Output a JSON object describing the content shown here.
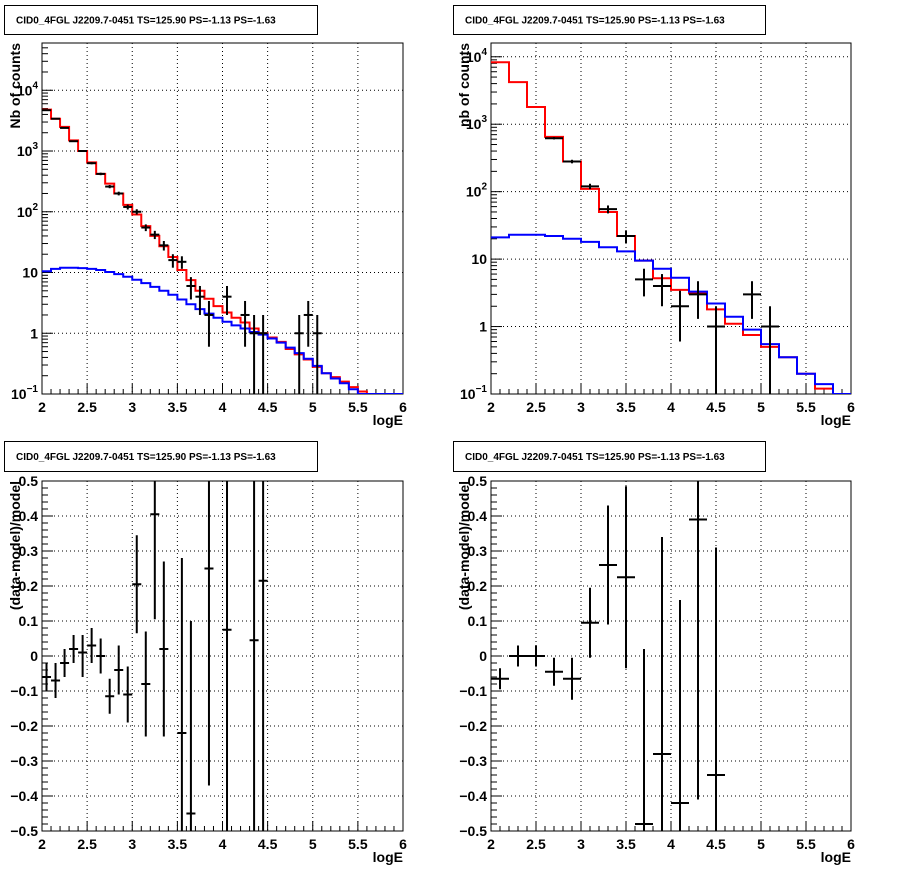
{
  "chart_data": [
    {
      "type": "line",
      "title": "CID0_4FGL J2209.7-0451 TS=125.90 PS=-1.13 PS=-1.63",
      "xlabel": "logE",
      "ylabel": "Nb of counts",
      "xlim": [
        2,
        6
      ],
      "ylim": [
        0.1,
        60000
      ],
      "yscale": "log",
      "grid": true,
      "xticks": [
        "2",
        "2.5",
        "3",
        "3.5",
        "4",
        "4.5",
        "5",
        "5.5",
        "6"
      ],
      "yticks": [
        {
          "v": 0.1,
          "base": "10",
          "exp": "−1"
        },
        {
          "v": 1,
          "label": "1"
        },
        {
          "v": 10,
          "label": "10"
        },
        {
          "v": 100,
          "base": "10",
          "exp": "2"
        },
        {
          "v": 1000,
          "base": "10",
          "exp": "3"
        },
        {
          "v": 10000,
          "base": "10",
          "exp": "4"
        }
      ],
      "binwidth": 0.1,
      "series": [
        {
          "color": "#ff0000",
          "kind": "step",
          "x": [
            2.0,
            2.1,
            2.2,
            2.3,
            2.4,
            2.5,
            2.6,
            2.7,
            2.8,
            2.9,
            3.0,
            3.1,
            3.2,
            3.3,
            3.4,
            3.5,
            3.6,
            3.7,
            3.8,
            3.9,
            4.0,
            4.1,
            4.2,
            4.3,
            4.4,
            4.5,
            4.6,
            4.7,
            4.8,
            4.9,
            5.0,
            5.1,
            5.2,
            5.3,
            5.4,
            5.5,
            5.6,
            5.7,
            5.8,
            5.9
          ],
          "y": [
            4800,
            3400,
            2500,
            1500,
            1000,
            650,
            420,
            290,
            200,
            130,
            90,
            58,
            40,
            27,
            18,
            11,
            7.5,
            5,
            3.7,
            2.8,
            2.2,
            1.8,
            1.5,
            1.2,
            1.0,
            0.85,
            0.72,
            0.55,
            0.45,
            0.37,
            0.28,
            0.22,
            0.19,
            0.16,
            0.13,
            0.11,
            0.1,
            0.1,
            0.1,
            0.1
          ]
        },
        {
          "color": "#0000ff",
          "kind": "step",
          "x": [
            2.0,
            2.1,
            2.2,
            2.3,
            2.4,
            2.5,
            2.6,
            2.7,
            2.8,
            2.9,
            3.0,
            3.1,
            3.2,
            3.3,
            3.4,
            3.5,
            3.6,
            3.7,
            3.8,
            3.9,
            4.0,
            4.1,
            4.2,
            4.3,
            4.4,
            4.5,
            4.6,
            4.7,
            4.8,
            4.9,
            5.0,
            5.1,
            5.2,
            5.3,
            5.4,
            5.5,
            5.6,
            5.7,
            5.8,
            5.9
          ],
          "y": [
            10.5,
            11.5,
            12,
            12,
            11.8,
            11.5,
            11,
            10.2,
            9.4,
            8.5,
            7.6,
            6.7,
            5.8,
            5,
            4.3,
            3.6,
            3,
            2.5,
            2.1,
            1.8,
            1.55,
            1.35,
            1.2,
            1.05,
            0.95,
            0.82,
            0.7,
            0.58,
            0.47,
            0.38,
            0.29,
            0.22,
            0.18,
            0.15,
            0.12,
            0.1,
            0.1,
            0.1,
            0.1,
            0.1
          ]
        },
        {
          "color": "#000000",
          "kind": "points",
          "xerr": 0.05,
          "x": [
            2.05,
            2.15,
            2.25,
            2.35,
            2.45,
            2.55,
            2.65,
            2.75,
            2.85,
            2.95,
            3.05,
            3.15,
            3.25,
            3.35,
            3.45,
            3.55,
            3.65,
            3.75,
            3.85,
            4.05,
            4.25,
            4.35,
            4.45,
            4.85,
            4.95,
            5.05
          ],
          "y": [
            4700,
            3400,
            2400,
            1450,
            1000,
            630,
            420,
            260,
            200,
            120,
            100,
            55,
            42,
            28,
            16,
            15,
            6,
            4,
            2,
            4,
            2,
            1,
            1,
            1,
            2,
            1
          ],
          "yerr_lo": [
            70,
            60,
            50,
            40,
            30,
            25,
            20,
            16,
            14,
            11,
            10,
            7,
            6.5,
            5,
            4,
            3.5,
            2.4,
            2,
            1.4,
            2,
            1.4,
            1,
            1,
            1,
            1.4,
            1
          ],
          "yerr_hi": [
            70,
            60,
            50,
            40,
            30,
            25,
            20,
            16,
            14,
            11,
            10,
            7,
            6.5,
            5,
            4,
            3.5,
            2.4,
            2,
            1.4,
            2,
            1.4,
            1,
            1,
            1,
            1.4,
            1
          ]
        }
      ]
    },
    {
      "type": "line",
      "title": "CID0_4FGL J2209.7-0451 TS=125.90 PS=-1.13 PS=-1.63",
      "xlabel": "logE",
      "ylabel": "nb of counts",
      "xlim": [
        2,
        6
      ],
      "ylim": [
        0.1,
        16000
      ],
      "yscale": "log",
      "grid": true,
      "xticks": [
        "2",
        "2.5",
        "3",
        "3.5",
        "4",
        "4.5",
        "5",
        "5.5",
        "6"
      ],
      "yticks": [
        {
          "v": 0.1,
          "base": "10",
          "exp": "−1"
        },
        {
          "v": 1,
          "label": "1"
        },
        {
          "v": 10,
          "label": "10"
        },
        {
          "v": 100,
          "base": "10",
          "exp": "2"
        },
        {
          "v": 1000,
          "base": "10",
          "exp": "3"
        },
        {
          "v": 10000,
          "base": "10",
          "exp": "4"
        }
      ],
      "binwidth": 0.2,
      "series": [
        {
          "color": "#ff0000",
          "kind": "step",
          "x": [
            2.0,
            2.2,
            2.4,
            2.6,
            2.8,
            3.0,
            3.2,
            3.4,
            3.6,
            3.8,
            4.0,
            4.2,
            4.4,
            4.6,
            4.8,
            5.0,
            5.2,
            5.4,
            5.6,
            5.8
          ],
          "y": [
            8300,
            4200,
            1800,
            650,
            280,
            110,
            50,
            22,
            9.5,
            5.2,
            3.5,
            3.1,
            1.8,
            1.1,
            0.75,
            0.5,
            0.35,
            0.2,
            0.12,
            0.1
          ]
        },
        {
          "color": "#0000ff",
          "kind": "step",
          "x": [
            2.0,
            2.2,
            2.4,
            2.6,
            2.8,
            3.0,
            3.2,
            3.4,
            3.6,
            3.8,
            4.0,
            4.2,
            4.4,
            4.6,
            4.8,
            5.0,
            5.2,
            5.4,
            5.6,
            5.8
          ],
          "y": [
            21,
            23,
            23,
            22,
            20,
            18,
            15,
            13,
            9.5,
            7.2,
            5.3,
            3.3,
            2.2,
            1.4,
            0.9,
            0.55,
            0.35,
            0.2,
            0.14,
            0.1
          ]
        },
        {
          "color": "#000000",
          "kind": "points",
          "xerr": 0.1,
          "x": [
            2.7,
            2.9,
            3.1,
            3.3,
            3.5,
            3.7,
            3.9,
            4.1,
            4.3,
            4.5,
            4.9,
            5.1
          ],
          "y": [
            620,
            280,
            120,
            55,
            22,
            5,
            4,
            2,
            3,
            1,
            3,
            1
          ],
          "yerr_lo": [
            25,
            17,
            11,
            7.4,
            4.7,
            2.2,
            2,
            1.4,
            1.7,
            1,
            1.7,
            1
          ],
          "yerr_hi": [
            25,
            17,
            11,
            7.4,
            4.7,
            2.2,
            2,
            1.4,
            1.7,
            1,
            1.7,
            1
          ]
        }
      ]
    },
    {
      "type": "scatter",
      "title": "CID0_4FGL J2209.7-0451 TS=125.90 PS=-1.13 PS=-1.63",
      "xlabel": "logE",
      "ylabel": "(data-model)/model",
      "xlim": [
        2,
        6
      ],
      "ylim": [
        -0.5,
        0.5
      ],
      "yscale": "linear",
      "grid": true,
      "xticks": [
        "2",
        "2.5",
        "3",
        "3.5",
        "4",
        "4.5",
        "5",
        "5.5",
        "6"
      ],
      "yticks": [
        {
          "v": -0.5,
          "label": "−0.5"
        },
        {
          "v": -0.4,
          "label": "−0.4"
        },
        {
          "v": -0.3,
          "label": "−0.3"
        },
        {
          "v": -0.2,
          "label": "−0.2"
        },
        {
          "v": -0.1,
          "label": "−0.1"
        },
        {
          "v": 0,
          "label": "0"
        },
        {
          "v": 0.1,
          "label": "0.1"
        },
        {
          "v": 0.2,
          "label": "0.2"
        },
        {
          "v": 0.3,
          "label": "0.3"
        },
        {
          "v": 0.4,
          "label": "0.4"
        },
        {
          "v": 0.5,
          "label": "0.5"
        }
      ],
      "series": [
        {
          "color": "#000000",
          "kind": "points",
          "xerr": 0.05,
          "x": [
            2.05,
            2.15,
            2.25,
            2.35,
            2.45,
            2.55,
            2.65,
            2.75,
            2.85,
            2.95,
            3.05,
            3.15,
            3.25,
            3.35,
            3.55,
            3.65,
            3.85,
            4.05,
            4.35,
            4.45
          ],
          "y": [
            -0.06,
            -0.07,
            -0.02,
            0.02,
            0.01,
            0.03,
            0.0,
            -0.115,
            -0.04,
            -0.11,
            0.205,
            -0.08,
            0.405,
            0.02,
            -0.22,
            -0.45,
            0.25,
            0.075,
            0.045,
            0.215
          ],
          "yerr_lo": [
            0.04,
            0.05,
            0.04,
            0.04,
            0.07,
            0.05,
            0.05,
            0.05,
            0.07,
            0.08,
            0.14,
            0.15,
            0.3,
            0.25,
            0.5,
            0.55,
            0.62,
            0.75,
            0.75,
            0.75
          ],
          "yerr_hi": [
            0.04,
            0.05,
            0.04,
            0.04,
            0.05,
            0.05,
            0.05,
            0.05,
            0.07,
            0.08,
            0.14,
            0.15,
            0.3,
            0.25,
            0.5,
            0.55,
            0.62,
            0.75,
            0.75,
            0.75
          ]
        }
      ]
    },
    {
      "type": "scatter",
      "title": "CID0_4FGL J2209.7-0451 TS=125.90 PS=-1.13 PS=-1.63",
      "xlabel": "logE",
      "ylabel": "(data-model)/model",
      "xlim": [
        2,
        6
      ],
      "ylim": [
        -0.5,
        0.5
      ],
      "yscale": "linear",
      "grid": true,
      "xticks": [
        "2",
        "2.5",
        "3",
        "3.5",
        "4",
        "4.5",
        "5",
        "5.5",
        "6"
      ],
      "yticks": [
        {
          "v": -0.5,
          "label": "−0.5"
        },
        {
          "v": -0.4,
          "label": "−0.4"
        },
        {
          "v": -0.3,
          "label": "−0.3"
        },
        {
          "v": -0.2,
          "label": "−0.2"
        },
        {
          "v": -0.1,
          "label": "−0.1"
        },
        {
          "v": 0,
          "label": "0"
        },
        {
          "v": 0.1,
          "label": "0.1"
        },
        {
          "v": 0.2,
          "label": "0.2"
        },
        {
          "v": 0.3,
          "label": "0.3"
        },
        {
          "v": 0.4,
          "label": "0.4"
        },
        {
          "v": 0.5,
          "label": "0.5"
        }
      ],
      "series": [
        {
          "color": "#000000",
          "kind": "points",
          "xerr": 0.1,
          "x": [
            2.1,
            2.3,
            2.5,
            2.7,
            2.9,
            3.1,
            3.3,
            3.5,
            3.7,
            3.9,
            4.1,
            4.3,
            4.5
          ],
          "y": [
            -0.065,
            0.0,
            0.0,
            -0.045,
            -0.065,
            0.095,
            0.26,
            0.225,
            -0.48,
            -0.28,
            -0.42,
            0.39,
            -0.34
          ],
          "yerr_lo": [
            0.03,
            0.03,
            0.03,
            0.04,
            0.06,
            0.1,
            0.17,
            0.26,
            0.5,
            0.62,
            0.58,
            0.8,
            0.65
          ],
          "yerr_hi": [
            0.03,
            0.03,
            0.03,
            0.04,
            0.06,
            0.1,
            0.17,
            0.26,
            0.5,
            0.62,
            0.58,
            0.8,
            0.65
          ]
        }
      ]
    }
  ]
}
